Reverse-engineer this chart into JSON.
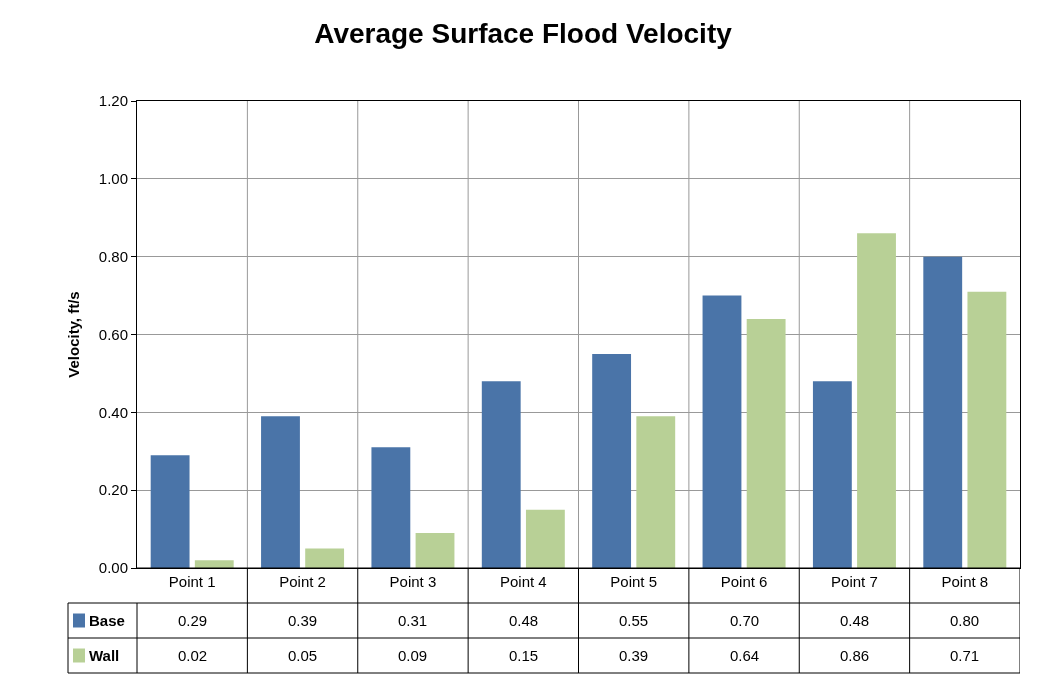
{
  "chart_data": {
    "type": "bar",
    "title": "Average Surface Flood Velocity",
    "ylabel": "Velocity, ft/s",
    "categories": [
      "Point 1",
      "Point 2",
      "Point 3",
      "Point 4",
      "Point 5",
      "Point 6",
      "Point 7",
      "Point 8"
    ],
    "series": [
      {
        "name": "Base",
        "color": "#4a74a8",
        "values": [
          0.29,
          0.39,
          0.31,
          0.48,
          0.55,
          0.7,
          0.48,
          0.8
        ],
        "value_labels": [
          "0.29",
          "0.39",
          "0.31",
          "0.48",
          "0.55",
          "0.70",
          "0.48",
          "0.80"
        ]
      },
      {
        "name": "Wall",
        "color": "#b8d096",
        "values": [
          0.02,
          0.05,
          0.09,
          0.15,
          0.39,
          0.64,
          0.86,
          0.71
        ],
        "value_labels": [
          "0.02",
          "0.05",
          "0.09",
          "0.15",
          "0.39",
          "0.64",
          "0.86",
          "0.71"
        ]
      }
    ],
    "ylim": [
      0,
      1.2
    ],
    "yticks": [
      {
        "value": 0,
        "label": "0.00"
      },
      {
        "value": 0.2,
        "label": "0.20"
      },
      {
        "value": 0.4,
        "label": "0.40"
      },
      {
        "value": 0.6,
        "label": "0.60"
      },
      {
        "value": 0.8,
        "label": "0.80"
      },
      {
        "value": 1.0,
        "label": "1.00"
      },
      {
        "value": 1.2,
        "label": "1.20"
      }
    ],
    "grid": true,
    "legend": "bottom"
  }
}
